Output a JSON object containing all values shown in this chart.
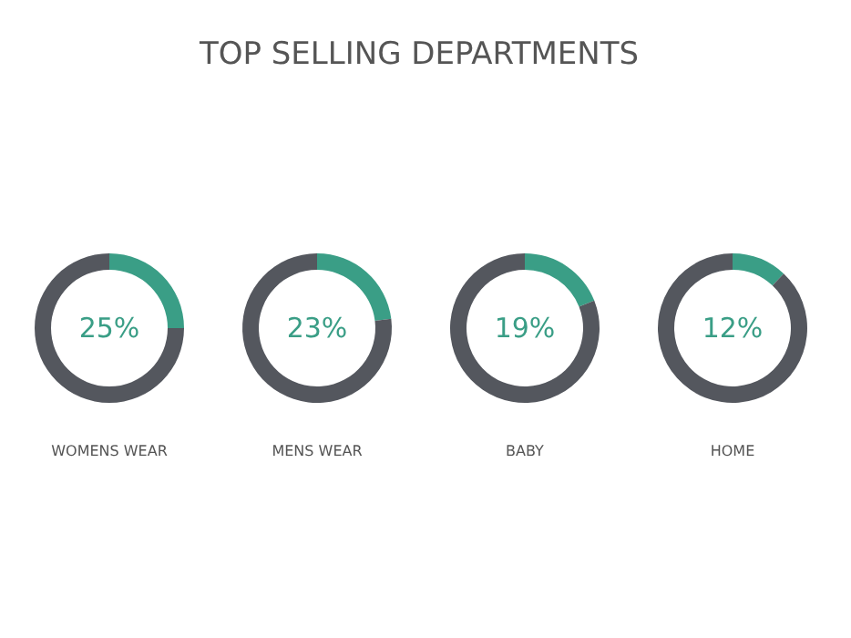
{
  "chart_data": [
    {
      "type": "other",
      "title": "TOP SELLING DEPARTMENTS"
    },
    {
      "type": "donut",
      "xlabel": "WOMENS WEAR",
      "categories": [
        null,
        null
      ],
      "values": [
        25,
        75
      ],
      "colors": [
        "#3a9e86",
        "#54575e"
      ],
      "annotations": [
        "25%"
      ]
    },
    {
      "type": "donut",
      "xlabel": "MENS WEAR",
      "categories": [
        null,
        null
      ],
      "values": [
        23,
        77
      ],
      "colors": [
        "#3a9e86",
        "#54575e"
      ],
      "annotations": [
        "23%"
      ]
    },
    {
      "type": "donut",
      "xlabel": "BABY",
      "categories": [
        null,
        null
      ],
      "values": [
        19,
        81
      ],
      "colors": [
        "#3a9e86",
        "#54575e"
      ],
      "annotations": [
        "19%"
      ]
    },
    {
      "type": "donut",
      "xlabel": "HOME",
      "categories": [
        null,
        null
      ],
      "values": [
        12,
        88
      ],
      "colors": [
        "#3a9e86",
        "#54575e"
      ],
      "annotations": [
        "12%"
      ]
    }
  ]
}
